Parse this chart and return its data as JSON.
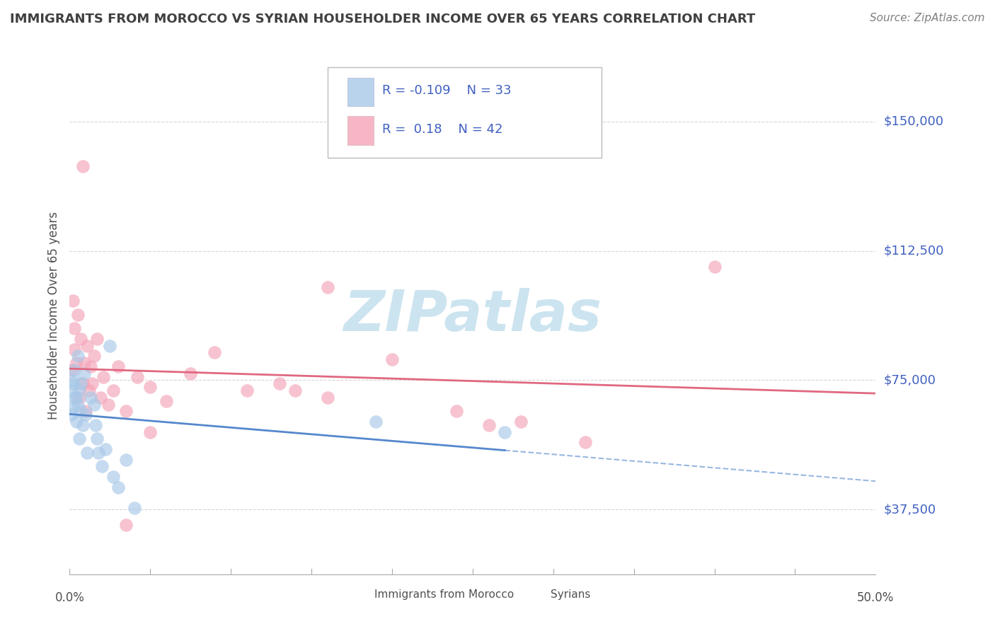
{
  "title": "IMMIGRANTS FROM MOROCCO VS SYRIAN HOUSEHOLDER INCOME OVER 65 YEARS CORRELATION CHART",
  "source": "Source: ZipAtlas.com",
  "ylabel": "Householder Income Over 65 years",
  "xlim": [
    0.0,
    0.5
  ],
  "ylim": [
    18750,
    168750
  ],
  "yticks": [
    37500,
    75000,
    112500,
    150000
  ],
  "ytick_labels": [
    "$37,500",
    "$75,000",
    "$112,500",
    "$150,000"
  ],
  "xtick_labels_ends": [
    "0.0%",
    "50.0%"
  ],
  "morocco_R": -0.109,
  "morocco_N": 33,
  "syrian_R": 0.18,
  "syrian_N": 42,
  "morocco_color": "#a8c8e8",
  "syrian_color": "#f4a4b8",
  "morocco_line_color": "#5588cc",
  "syrian_line_color": "#e06880",
  "background_color": "#ffffff",
  "grid_color": "#cccccc",
  "watermark": "ZIPatlas",
  "watermark_color": "#cce4f0",
  "title_color": "#404040",
  "source_color": "#808080",
  "label_color": "#4060c0",
  "axis_label_color": "#505050",
  "morocco_x": [
    0.001,
    0.001,
    0.002,
    0.002,
    0.003,
    0.004,
    0.004,
    0.005,
    0.006,
    0.006,
    0.007,
    0.008,
    0.009,
    0.01,
    0.011,
    0.013,
    0.015,
    0.016,
    0.017,
    0.018,
    0.02,
    0.022,
    0.025,
    0.027,
    0.03,
    0.035,
    0.04,
    0.002,
    0.003,
    0.005,
    0.007,
    0.19,
    0.27
  ],
  "morocco_y": [
    72000,
    65000,
    74000,
    67000,
    78000,
    70000,
    63000,
    82000,
    72000,
    58000,
    74000,
    62000,
    77000,
    65000,
    54000,
    70000,
    68000,
    62000,
    58000,
    54000,
    50000,
    55000,
    85000,
    47000,
    44000,
    52000,
    38000,
    75000,
    70000,
    68000,
    66000,
    63000,
    60000
  ],
  "syrian_x": [
    0.001,
    0.002,
    0.003,
    0.003,
    0.004,
    0.005,
    0.006,
    0.007,
    0.008,
    0.009,
    0.01,
    0.011,
    0.012,
    0.013,
    0.014,
    0.015,
    0.017,
    0.019,
    0.021,
    0.024,
    0.027,
    0.03,
    0.035,
    0.042,
    0.05,
    0.06,
    0.075,
    0.09,
    0.11,
    0.13,
    0.16,
    0.2,
    0.24,
    0.28,
    0.32,
    0.4,
    0.008,
    0.14,
    0.26,
    0.035,
    0.16,
    0.05
  ],
  "syrian_y": [
    78000,
    98000,
    90000,
    84000,
    80000,
    94000,
    70000,
    87000,
    74000,
    80000,
    66000,
    85000,
    72000,
    79000,
    74000,
    82000,
    87000,
    70000,
    76000,
    68000,
    72000,
    79000,
    66000,
    76000,
    73000,
    69000,
    77000,
    83000,
    72000,
    74000,
    70000,
    81000,
    66000,
    63000,
    57000,
    108000,
    137000,
    72000,
    62000,
    33000,
    102000,
    60000
  ]
}
